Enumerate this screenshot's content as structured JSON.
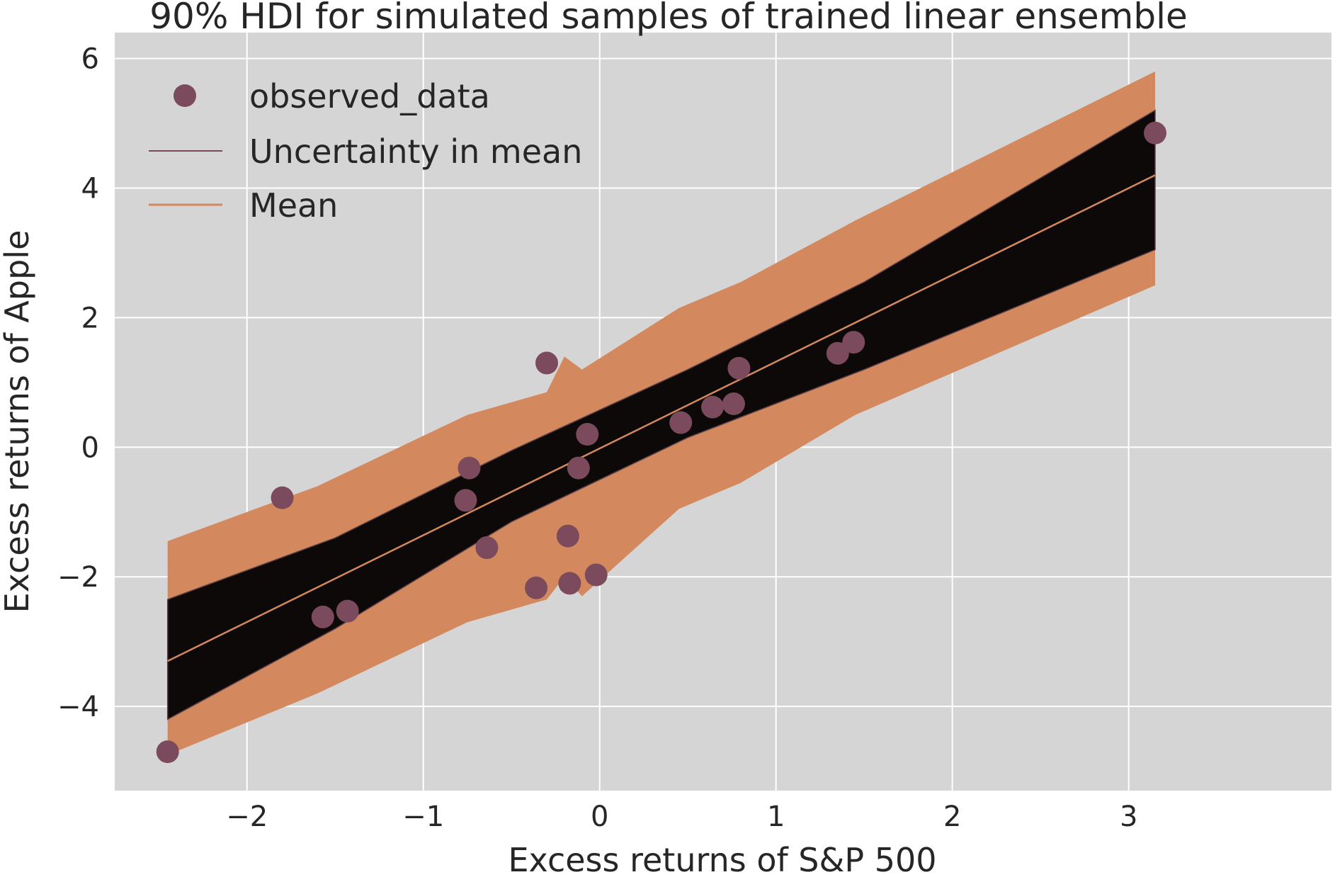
{
  "chart_data": {
    "type": "scatter",
    "title": "90% HDI for simulated samples of trained linear ensemble",
    "xlabel": "Excess returns of S&P 500",
    "ylabel": "Excess returns of Apple",
    "xlim": [
      -2.75,
      4.15
    ],
    "ylim": [
      -5.3,
      6.4
    ],
    "xticks": [
      -2,
      -1,
      0,
      1,
      2,
      3
    ],
    "yticks": [
      -4,
      -2,
      0,
      2,
      4,
      6
    ],
    "xtick_labels": [
      "−2",
      "−1",
      "0",
      "1",
      "2",
      "3"
    ],
    "ytick_labels": [
      "−4",
      "−2",
      "0",
      "2",
      "4",
      "6"
    ],
    "grid": true,
    "legend_position": "top-left",
    "legend": [
      {
        "label": "observed_data",
        "kind": "marker"
      },
      {
        "label": "Uncertainty in mean",
        "kind": "line"
      },
      {
        "label": "Mean",
        "kind": "line"
      }
    ],
    "colors": {
      "background": "#d5d5d5",
      "grid": "#ffffff",
      "observed": "#7b4a5c",
      "hdi_band": "#d4885e",
      "uncertainty": "#0d0908",
      "mean": "#d4885e"
    },
    "series": [
      {
        "name": "observed_data",
        "kind": "scatter",
        "points": [
          [
            -2.45,
            -4.7
          ],
          [
            -1.8,
            -0.78
          ],
          [
            -1.57,
            -2.62
          ],
          [
            -1.43,
            -2.53
          ],
          [
            -0.76,
            -0.82
          ],
          [
            -0.74,
            -0.32
          ],
          [
            -0.64,
            -1.55
          ],
          [
            -0.36,
            -2.17
          ],
          [
            -0.3,
            1.3
          ],
          [
            -0.18,
            -1.37
          ],
          [
            -0.17,
            -2.1
          ],
          [
            -0.12,
            -0.32
          ],
          [
            -0.07,
            0.2
          ],
          [
            -0.02,
            -1.97
          ],
          [
            0.46,
            0.38
          ],
          [
            0.64,
            0.62
          ],
          [
            0.76,
            0.67
          ],
          [
            0.79,
            1.22
          ],
          [
            1.35,
            1.45
          ],
          [
            1.44,
            1.62
          ],
          [
            3.15,
            4.85
          ]
        ]
      },
      {
        "name": "Mean",
        "kind": "line",
        "x": [
          -2.45,
          3.15
        ],
        "y": [
          -3.3,
          4.2
        ]
      },
      {
        "name": "Uncertainty in mean",
        "kind": "band",
        "x": [
          -2.45,
          -1.5,
          -0.5,
          0.5,
          1.5,
          3.15
        ],
        "lower": [
          -4.2,
          -2.8,
          -1.15,
          0.15,
          1.2,
          3.05
        ],
        "upper": [
          -2.35,
          -1.4,
          -0.05,
          1.2,
          2.55,
          5.2
        ]
      },
      {
        "name": "90% HDI",
        "kind": "band",
        "x": [
          -2.45,
          -1.6,
          -0.75,
          -0.3,
          -0.2,
          -0.1,
          0.45,
          0.8,
          1.45,
          3.15
        ],
        "lower": [
          -4.75,
          -3.8,
          -2.7,
          -2.35,
          -2.0,
          -2.3,
          -0.95,
          -0.55,
          0.5,
          2.5
        ],
        "upper": [
          -1.45,
          -0.6,
          0.5,
          0.85,
          1.4,
          1.2,
          2.15,
          2.55,
          3.5,
          5.8
        ]
      }
    ]
  }
}
